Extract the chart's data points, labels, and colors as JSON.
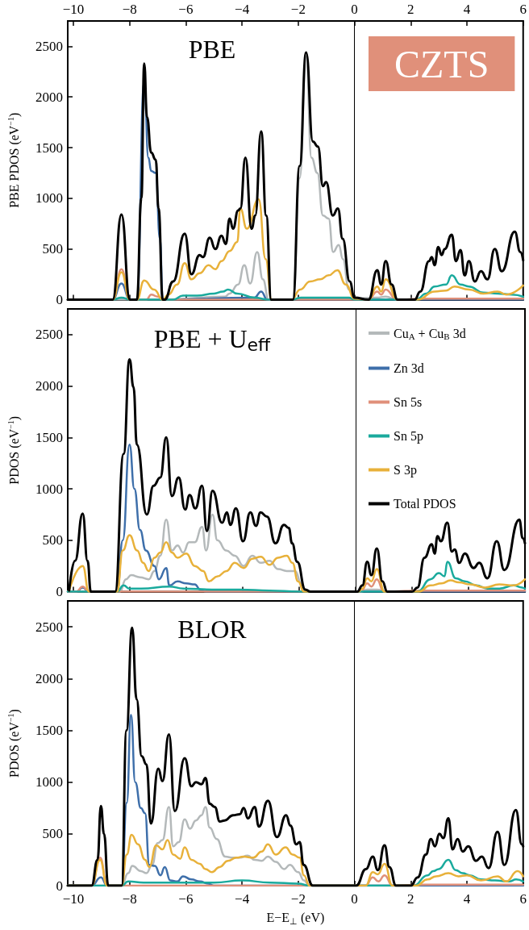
{
  "chart_data": [
    {
      "type": "line",
      "title": "PBE",
      "ylabel": "PBE PDOS (eV$^{−1}$)",
      "xlim": [
        -10.2,
        6
      ],
      "x2lim": [
        -10.2,
        6
      ],
      "x2ticks": [
        {
          "value": -10,
          "label": "−10"
        },
        {
          "value": -8,
          "label": "−8"
        },
        {
          "value": -6,
          "label": "−6"
        },
        {
          "value": -4,
          "label": "−4"
        },
        {
          "value": -2,
          "label": "−2"
        },
        0,
        2,
        4,
        6
      ],
      "ylim": [
        0,
        2750
      ],
      "yticks": [
        0,
        500,
        1000,
        1500,
        2000,
        2500
      ],
      "marker": "none",
      "ref_lines": [
        {
          "axis": "x",
          "value": 0,
          "color": "#000000"
        }
      ],
      "annotations": [
        "CZTS"
      ],
      "series": [
        {
          "color": "#b4b9ba",
          "x": [
            -10.2,
            -6.8,
            -4.6,
            -4.44,
            -4.14,
            -3.92,
            -3.71,
            -3.46,
            -3.26,
            -3.05,
            -2.19,
            -1.95,
            -1.72,
            -1.53,
            -1.32,
            -1.12,
            -0.92,
            -0.76,
            -0.56,
            -0.41,
            -0.2,
            0,
            0.8,
            1.11,
            1.5,
            2.5,
            6
          ],
          "values": [
            0,
            0,
            30,
            60,
            150,
            340,
            160,
            470,
            200,
            0,
            0,
            1200,
            2400,
            1400,
            1250,
            830,
            800,
            470,
            540,
            400,
            100,
            10,
            20,
            30,
            0,
            10,
            10
          ]
        },
        {
          "color": "#3e6faa",
          "x": [
            -10.2,
            -8.6,
            -8.29,
            -7.99,
            -7.74,
            -7.48,
            -7.33,
            -7.23,
            -7.07,
            -6.92,
            -6.82,
            -3.56,
            -3.32,
            -3.1,
            6
          ],
          "values": [
            0,
            0,
            160,
            0,
            0,
            2150,
            1400,
            1270,
            1250,
            600,
            0,
            20,
            80,
            0,
            0
          ]
        },
        {
          "color": "#e0907a",
          "x": [
            -10.2,
            -8.6,
            -8.29,
            -7.99,
            -7.4,
            -7.23,
            -7.0,
            -6.82,
            0.5,
            0.81,
            0.95,
            1.11,
            1.5,
            2.5,
            6
          ],
          "values": [
            0,
            0,
            300,
            0,
            0,
            50,
            30,
            0,
            0,
            80,
            50,
            100,
            0,
            10,
            10
          ]
        },
        {
          "color": "#1aaa9d",
          "x": [
            -10.2,
            -8.6,
            -8.29,
            -7.99,
            -6.45,
            -6.1,
            -5.6,
            -4.99,
            -4.68,
            -4.5,
            -4.17,
            -3.56,
            -3.05,
            -2.2,
            -1.9,
            -0.2,
            0,
            2.2,
            2.55,
            2.85,
            3.26,
            3.46,
            3.77,
            4.07,
            4.58,
            5.09,
            5.6,
            6
          ],
          "values": [
            0,
            0,
            20,
            0,
            0,
            40,
            40,
            60,
            80,
            100,
            60,
            20,
            0,
            0,
            20,
            20,
            0,
            0,
            60,
            130,
            150,
            240,
            150,
            130,
            70,
            60,
            50,
            30
          ]
        },
        {
          "color": "#e8b13a",
          "x": [
            -10.2,
            -8.6,
            -8.29,
            -7.99,
            -7.74,
            -7.48,
            -7.13,
            -6.82,
            -6.62,
            -6.31,
            -6.04,
            -5.8,
            -5.51,
            -5.19,
            -4.95,
            -4.73,
            -4.44,
            -4.17,
            -4.06,
            -3.83,
            -3.41,
            -3.16,
            -2.95,
            -2.24,
            -1.93,
            -1.58,
            -1.22,
            -0.92,
            -0.61,
            -0.31,
            0,
            0.5,
            0.81,
            0.95,
            1.11,
            1.53,
            2.24,
            2.85,
            3.26,
            3.56,
            4.07,
            4.58,
            5.09,
            5.4,
            6
          ],
          "values": [
            0,
            0,
            270,
            0,
            0,
            190,
            100,
            0,
            50,
            150,
            360,
            200,
            260,
            340,
            300,
            380,
            480,
            570,
            900,
            700,
            990,
            400,
            0,
            0,
            100,
            180,
            200,
            240,
            290,
            150,
            10,
            0,
            130,
            80,
            200,
            0,
            0,
            80,
            90,
            130,
            100,
            60,
            80,
            50,
            140
          ]
        },
        {
          "color": "#000000",
          "x": [
            -10.2,
            -8.6,
            -8.29,
            -7.99,
            -7.74,
            -7.58,
            -7.48,
            -7.38,
            -7.23,
            -7.07,
            -6.97,
            -6.82,
            -6.75,
            -6.45,
            -6.04,
            -5.8,
            -5.51,
            -5.39,
            -5.15,
            -4.95,
            -4.73,
            -4.58,
            -4.44,
            -4.32,
            -4.14,
            -4.06,
            -3.88,
            -3.66,
            -3.53,
            -3.32,
            -3.14,
            -2.96,
            -2.19,
            -1.95,
            -1.72,
            -1.48,
            -1.3,
            -1.12,
            -1.01,
            -0.77,
            -0.59,
            -0.42,
            -0.17,
            0,
            0.5,
            0.81,
            0.95,
            1.11,
            1.32,
            1.53,
            2.14,
            2.34,
            2.65,
            2.75,
            2.85,
            2.98,
            3.1,
            3.21,
            3.46,
            3.61,
            3.77,
            3.92,
            4.07,
            4.28,
            4.5,
            4.73,
            4.99,
            5.24,
            5.7,
            5.9,
            6
          ],
          "values": [
            0,
            0,
            840,
            0,
            0,
            1000,
            2330,
            1800,
            1450,
            1380,
            900,
            0,
            0,
            180,
            650,
            250,
            440,
            420,
            610,
            500,
            630,
            550,
            800,
            700,
            880,
            900,
            1400,
            700,
            830,
            1660,
            830,
            0,
            0,
            1320,
            2440,
            1560,
            1510,
            1120,
            1160,
            830,
            900,
            600,
            180,
            20,
            0,
            290,
            150,
            380,
            150,
            0,
            0,
            80,
            380,
            420,
            340,
            520,
            440,
            500,
            640,
            380,
            490,
            240,
            380,
            180,
            280,
            200,
            500,
            280,
            670,
            470,
            390
          ]
        }
      ]
    },
    {
      "type": "line",
      "title": "PBE + U$_{eff}$",
      "ylabel": "PDOS (eV$^{−1}$)",
      "xlim": [
        -10.2,
        6
      ],
      "xticks": [
        -10,
        -8,
        -6,
        -4,
        -2,
        0,
        2,
        4,
        6
      ],
      "tick_labels": "y",
      "ylim": [
        0,
        2750
      ],
      "yticks": [
        0,
        500,
        1000,
        1500,
        2000,
        2500
      ],
      "marker": "none",
      "legend": "top right",
      "ref_lines": [
        {
          "axis": "x",
          "value": 0,
          "color": "#000000"
        }
      ],
      "series": [
        {
          "name": "Cu$_{A}$ + Cu$_{B}$ 3d",
          "color": "#b4b9ba",
          "x": [
            -10.2,
            -8.35,
            -8.14,
            -7.95,
            -7.64,
            -7.33,
            -7.13,
            -6.92,
            -6.71,
            -6.51,
            -6.31,
            -6.11,
            -5.9,
            -5.7,
            -5.44,
            -5.3,
            -5.07,
            -4.9,
            -4.58,
            -4.28,
            -3.97,
            -3.66,
            -3.36,
            -3.05,
            -2.75,
            -2.44,
            -2.14,
            -1.93,
            -1.78,
            0.2,
            0.4,
            0.75,
            1.1,
            2.5,
            6
          ],
          "values": [
            0,
            0,
            120,
            160,
            140,
            120,
            200,
            350,
            700,
            400,
            450,
            380,
            480,
            480,
            630,
            400,
            750,
            500,
            400,
            350,
            250,
            350,
            280,
            300,
            220,
            200,
            200,
            80,
            0,
            0,
            20,
            20,
            0,
            10,
            10
          ]
        },
        {
          "name": "Zn 3d",
          "color": "#3e6faa",
          "x": [
            -10.2,
            -9.9,
            -9.67,
            -9.45,
            -8.45,
            -8.25,
            -8.01,
            -7.84,
            -7.64,
            -7.43,
            -7.13,
            -6.97,
            -6.71,
            -6.6,
            -6.31,
            -6.0,
            -5.7,
            -5.5,
            -5.3,
            6
          ],
          "values": [
            0,
            0,
            40,
            0,
            0,
            500,
            1430,
            1000,
            600,
            400,
            250,
            120,
            230,
            60,
            100,
            80,
            70,
            20,
            0,
            0
          ]
        },
        {
          "name": "Sn 5s",
          "color": "#e0907a",
          "x": [
            -10.2,
            -9.9,
            -9.67,
            -9.45,
            0.2,
            0.41,
            0.56,
            0.75,
            1.0,
            2.5,
            6
          ],
          "values": [
            0,
            0,
            50,
            0,
            0,
            80,
            50,
            120,
            0,
            10,
            10
          ]
        },
        {
          "name": "Sn 5p",
          "color": "#1aaa9d",
          "x": [
            -10.2,
            -8.45,
            -8.22,
            -8.01,
            -7.6,
            -6.6,
            -6.1,
            -5.1,
            -4.1,
            -3.05,
            -2.0,
            2.2,
            2.65,
            2.95,
            3.15,
            3.25,
            3.55,
            3.87,
            4.28,
            4.67,
            5.1,
            5.6,
            5.9,
            6
          ],
          "values": [
            0,
            0,
            60,
            30,
            30,
            50,
            30,
            20,
            20,
            10,
            0,
            0,
            120,
            180,
            150,
            290,
            130,
            100,
            60,
            30,
            30,
            60,
            40,
            30
          ]
        },
        {
          "name": "S 3p",
          "color": "#e8b13a",
          "x": [
            -10.15,
            -9.67,
            -9.45,
            -8.45,
            -8.25,
            -8.01,
            -7.74,
            -7.53,
            -7.33,
            -7.13,
            -6.92,
            -6.71,
            -6.51,
            -6.31,
            -6.0,
            -5.7,
            -5.4,
            -5.2,
            -4.89,
            -4.58,
            -4.28,
            -3.97,
            -3.66,
            -3.36,
            -3.05,
            -2.75,
            -2.44,
            -2.24,
            -2.04,
            -1.83,
            0.1,
            0.24,
            0.41,
            0.56,
            0.75,
            1.02,
            2.24,
            2.65,
            3.05,
            3.36,
            3.66,
            4.07,
            4.58,
            5.09,
            5.6,
            6
          ],
          "values": [
            10,
            250,
            0,
            0,
            400,
            550,
            400,
            280,
            200,
            330,
            380,
            480,
            380,
            330,
            370,
            250,
            200,
            100,
            150,
            200,
            280,
            230,
            320,
            340,
            260,
            330,
            350,
            280,
            100,
            0,
            0,
            30,
            130,
            100,
            220,
            0,
            0,
            60,
            80,
            110,
            90,
            70,
            40,
            70,
            60,
            120
          ]
        },
        {
          "name": "Total PDOS",
          "color": "#000000",
          "x": [
            -10.15,
            -9.94,
            -9.67,
            -9.5,
            -9.38,
            -8.52,
            -8.22,
            -8.01,
            -7.87,
            -7.75,
            -7.4,
            -7.16,
            -6.92,
            -6.71,
            -6.51,
            -6.27,
            -6.04,
            -5.88,
            -5.68,
            -5.44,
            -5.27,
            -5.07,
            -4.73,
            -4.56,
            -4.44,
            -4.24,
            -3.99,
            -3.73,
            -3.53,
            -3.37,
            -3.14,
            -2.84,
            -2.54,
            -2.37,
            -2.25,
            -2.07,
            -1.78,
            -1.6,
            0.06,
            0.24,
            0.41,
            0.56,
            0.75,
            0.95,
            1.12,
            2.0,
            2.19,
            2.44,
            2.7,
            2.8,
            2.9,
            3.02,
            3.25,
            3.41,
            3.51,
            3.67,
            3.87,
            4.18,
            4.38,
            4.67,
            5.0,
            5.27,
            5.8,
            5.92,
            6
          ],
          "values": [
            10,
            300,
            760,
            300,
            0,
            0,
            1340,
            2260,
            1990,
            1430,
            750,
            1030,
            1110,
            1500,
            930,
            1110,
            800,
            940,
            810,
            1030,
            590,
            980,
            670,
            770,
            650,
            810,
            490,
            770,
            640,
            770,
            730,
            470,
            650,
            620,
            470,
            290,
            20,
            0,
            0,
            60,
            290,
            160,
            420,
            100,
            0,
            0,
            40,
            330,
            460,
            370,
            540,
            490,
            670,
            390,
            410,
            280,
            370,
            230,
            280,
            130,
            490,
            210,
            700,
            520,
            470
          ]
        }
      ]
    },
    {
      "type": "line",
      "title": "BLOR",
      "ylabel": "PDOS (eV$^{−1}$)",
      "xlabel": "E−E$_{⊥}$ (eV)",
      "xlim": [
        -10.2,
        6
      ],
      "xticks": [
        {
          "value": -10,
          "label": "−10"
        },
        {
          "value": -8,
          "label": "−8"
        },
        {
          "value": -6,
          "label": "−6"
        },
        {
          "value": -4,
          "label": "−4"
        },
        {
          "value": -2,
          "label": "−2"
        },
        0,
        2,
        4,
        6
      ],
      "ylim": [
        0,
        2750
      ],
      "yticks": [
        0,
        500,
        1000,
        1500,
        2000,
        2500
      ],
      "marker": "none",
      "ref_lines": [
        {
          "axis": "x",
          "value": 0,
          "color": "#000000"
        }
      ],
      "series": [
        {
          "color": "#b4b9ba",
          "x": [
            -10.2,
            -8.28,
            -8.05,
            -7.9,
            -7.6,
            -7.4,
            -7.2,
            -7.0,
            -6.83,
            -6.6,
            -6.45,
            -6.25,
            -6.04,
            -5.85,
            -5.64,
            -5.44,
            -5.3,
            -5.15,
            -4.9,
            -4.6,
            -4.32,
            -4.08,
            -3.8,
            -3.55,
            -3.3,
            -3.08,
            -2.8,
            -2.5,
            -2.3,
            -2.0,
            -1.8,
            -1.6,
            6
          ],
          "values": [
            0,
            0,
            120,
            190,
            140,
            120,
            200,
            410,
            440,
            760,
            380,
            420,
            640,
            550,
            630,
            680,
            760,
            560,
            450,
            280,
            270,
            270,
            290,
            250,
            240,
            280,
            230,
            160,
            200,
            130,
            50,
            0,
            0
          ]
        },
        {
          "color": "#3e6faa",
          "x": [
            -10.2,
            -9.35,
            -9.02,
            -8.8,
            -8.28,
            -8.1,
            -7.95,
            -7.8,
            -7.6,
            -7.45,
            -7.3,
            -7.1,
            -6.9,
            -6.75,
            -6.55,
            -6.3,
            -6.1,
            -5.8,
            -5.5,
            -5.2,
            -5.0,
            6
          ],
          "values": [
            0,
            0,
            80,
            0,
            0,
            800,
            1650,
            1000,
            750,
            700,
            200,
            190,
            100,
            180,
            50,
            40,
            90,
            60,
            40,
            20,
            0,
            0
          ]
        },
        {
          "color": "#e0907a",
          "x": [
            -10.2,
            -9.35,
            -9.05,
            -8.8,
            0.4,
            0.65,
            0.85,
            1.07,
            1.35,
            2.5,
            6
          ],
          "values": [
            0,
            0,
            270,
            0,
            0,
            80,
            40,
            100,
            0,
            10,
            10
          ]
        },
        {
          "color": "#1aaa9d",
          "x": [
            -10.2,
            -8.28,
            -8.05,
            -7.5,
            -6.5,
            -5.0,
            -4.0,
            -3.0,
            -2.0,
            -1.6,
            2.1,
            2.6,
            2.8,
            3.0,
            3.34,
            3.6,
            3.85,
            4.1,
            4.5,
            5.0,
            5.5,
            5.75,
            6
          ],
          "values": [
            0,
            0,
            40,
            30,
            30,
            30,
            50,
            30,
            20,
            0,
            0,
            100,
            140,
            160,
            250,
            150,
            120,
            100,
            60,
            50,
            40,
            60,
            40
          ]
        },
        {
          "color": "#e8b13a",
          "x": [
            -10.2,
            -9.35,
            -9.05,
            -8.8,
            -8.28,
            -8.1,
            -7.93,
            -7.7,
            -7.45,
            -7.3,
            -7.05,
            -6.83,
            -6.65,
            -6.45,
            -6.2,
            -6.04,
            -5.8,
            -5.5,
            -5.3,
            -5.07,
            -4.8,
            -4.5,
            -4.2,
            -3.95,
            -3.6,
            -3.3,
            -3.08,
            -2.8,
            -2.45,
            -2.2,
            -1.95,
            -1.8,
            -1.6,
            0.4,
            0.65,
            0.83,
            1.07,
            1.35,
            2.2,
            2.6,
            2.9,
            3.34,
            3.7,
            4.0,
            4.5,
            5.09,
            5.4,
            5.8,
            6
          ],
          "values": [
            0,
            0,
            250,
            0,
            0,
            300,
            490,
            400,
            250,
            180,
            390,
            350,
            440,
            300,
            260,
            370,
            250,
            210,
            160,
            130,
            180,
            240,
            270,
            280,
            270,
            330,
            400,
            300,
            370,
            300,
            270,
            100,
            0,
            0,
            130,
            110,
            210,
            0,
            0,
            60,
            90,
            120,
            90,
            100,
            50,
            90,
            40,
            140,
            90
          ]
        },
        {
          "color": "#000000",
          "x": [
            -10.2,
            -9.35,
            -9.14,
            -9.02,
            -8.91,
            -8.76,
            -8.28,
            -8.11,
            -7.91,
            -7.75,
            -7.57,
            -7.4,
            -7.24,
            -6.98,
            -6.83,
            -6.6,
            -6.39,
            -6.04,
            -5.8,
            -5.64,
            -5.44,
            -5.3,
            -5.15,
            -4.97,
            -4.79,
            -4.62,
            -4.32,
            -4.08,
            -3.94,
            -3.79,
            -3.55,
            -3.4,
            -3.08,
            -2.76,
            -2.43,
            -2.28,
            -2.07,
            -1.95,
            -1.81,
            -1.48,
            0.06,
            0.41,
            0.65,
            0.83,
            1.07,
            1.24,
            1.48,
            2.0,
            2.25,
            2.54,
            2.72,
            2.86,
            3.02,
            3.16,
            3.34,
            3.49,
            3.67,
            3.85,
            4.05,
            4.32,
            4.53,
            4.77,
            5.09,
            5.33,
            5.74,
            5.95,
            6
          ],
          "values": [
            0,
            0,
            250,
            770,
            500,
            0,
            0,
            1500,
            2490,
            1800,
            1250,
            1170,
            600,
            1130,
            1010,
            1460,
            720,
            1230,
            960,
            1000,
            980,
            1040,
            790,
            760,
            620,
            630,
            680,
            690,
            750,
            650,
            760,
            570,
            820,
            470,
            680,
            580,
            400,
            420,
            200,
            0,
            0,
            160,
            280,
            150,
            390,
            180,
            0,
            0,
            80,
            300,
            450,
            380,
            500,
            460,
            650,
            350,
            450,
            330,
            380,
            240,
            280,
            170,
            520,
            200,
            730,
            400,
            380
          ]
        }
      ]
    }
  ]
}
